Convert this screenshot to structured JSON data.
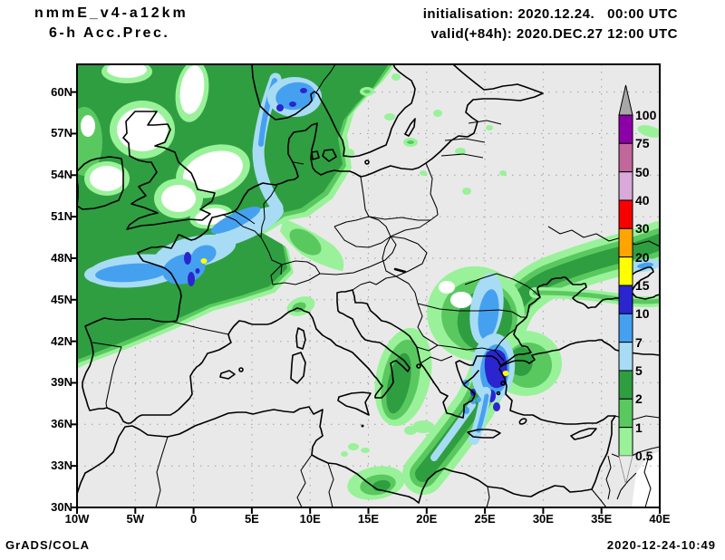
{
  "header": {
    "model": "nmmE_v4-a12km",
    "field": "6-h Acc.Prec.",
    "init": "initialisation: 2020.12.24.   00:00 UTC",
    "valid": "valid(+84h): 2020.DEC.27 12:00 UTC"
  },
  "footer": {
    "left": "GrADS/COLA",
    "right": "2020-12-24-10:49"
  },
  "axes": {
    "lat_labels": [
      "60N",
      "57N",
      "54N",
      "51N",
      "48N",
      "45N",
      "42N",
      "39N",
      "36N",
      "33N",
      "30N"
    ],
    "lon_labels": [
      "10W",
      "5W",
      "0",
      "5E",
      "10E",
      "15E",
      "20E",
      "25E",
      "30E",
      "35E",
      "40E"
    ]
  },
  "colorbar": {
    "levels_top_to_bottom": [
      "100",
      "75",
      "50",
      "40",
      "30",
      "20",
      "15",
      "10",
      "7",
      "5",
      "2",
      "1",
      "0.5"
    ],
    "segment_colors_top_to_bottom": [
      "#8d00a8",
      "#c1679b",
      "#d8a9d9",
      "#f80000",
      "#ffa400",
      "#ffff00",
      "#2a25cf",
      "#45a1f0",
      "#a8dcf4",
      "#2f9e41",
      "#59c95f",
      "#99f299"
    ],
    "over_color": "#a8a8a8",
    "under_color": "#e9e9e9"
  },
  "chart_data": {
    "type": "heatmap",
    "subtype": "filled-contour precipitation forecast map (GrADS)",
    "title": "nmmE_v4-a12km 6-h Acc.Prec.",
    "init_time": "2020.12.24. 00:00 UTC",
    "valid_time": "2020.DEC.27 12:00 UTC (+84h)",
    "lon_range_deg": [
      -10,
      40
    ],
    "lat_range_deg": [
      30,
      62
    ],
    "lon_ticks_deg": [
      -10,
      -5,
      0,
      5,
      10,
      15,
      20,
      25,
      30,
      35,
      40
    ],
    "lat_ticks_deg": [
      60,
      57,
      54,
      51,
      48,
      45,
      42,
      39,
      36,
      33,
      30
    ],
    "grid": "dotted gray at 5 deg lon / 3 deg lat",
    "legend_position": "right, vertical, overlapping map edge",
    "levels": [
      0.5,
      1,
      2,
      5,
      7,
      10,
      15,
      20,
      30,
      40,
      50,
      75,
      100
    ],
    "palette": {
      "green_light": "#99f299",
      "green_mid": "#59c95f",
      "green_dark": "#2f9e41",
      "blue_light": "#a8dcf4",
      "blue_mid": "#45a1f0",
      "blue_dark": "#2a25cf",
      "yellow": "#ffff00",
      "orange": "#ffa400",
      "red": "#f80000",
      "lilac": "#d8a9d9",
      "mauve": "#c1679b",
      "purple": "#8d00a8",
      "over_gray": "#a8a8a8",
      "background": "#e9e9e9",
      "dry_white": "#ffffff"
    },
    "regions": [
      {
        "area": "NE Atlantic / British Isles / Norwegian Sea",
        "value_range": "0.5-5",
        "notes": "broad green field with embedded white minima"
      },
      {
        "area": "Southern Norway / Skagerrak",
        "value_range": "5-15",
        "notes": "blue patch with small 10-15 cores"
      },
      {
        "area": "North Sea band toward Denmark",
        "value_range": "5-10"
      },
      {
        "area": "Bay of Biscay / NW France / English Channel",
        "value_range": "5-10",
        "notes": "local 10-15 cores, tiny 15-20 maximum near Paris"
      },
      {
        "area": "Western Black Sea / E Bulgaria",
        "value_range": "5-10"
      },
      {
        "area": "Sea of Marmara / NW Turkey / Aegean",
        "value_range": "7-15",
        "notes": "tiny 15-20 maximum"
      },
      {
        "area": "Ionian-Greece-Bulgaria-Azov band",
        "value_range": "1-7",
        "notes": "long SW-NE oriented band"
      },
      {
        "area": "Band branch to Libyan coast near Benghazi",
        "value_range": "1-7",
        "notes": "narrow band with 5-7 core"
      },
      {
        "area": "NE Libya coast",
        "value_range": "0.5-5"
      },
      {
        "area": "Sea of Azov band near 38-40E",
        "value_range": "2-7",
        "notes": "small 5-7 lens at right edge"
      }
    ]
  }
}
